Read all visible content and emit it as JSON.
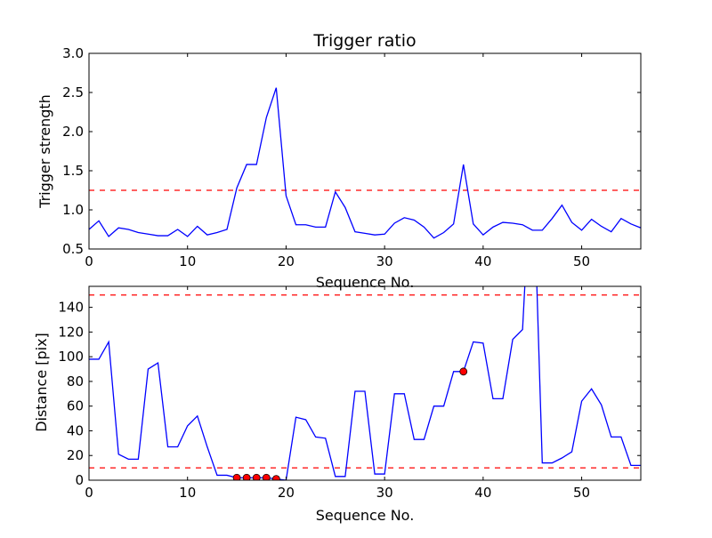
{
  "chart_data": [
    {
      "type": "line",
      "title": "Trigger ratio",
      "xlabel": "Sequence No.",
      "ylabel": "Trigger strength",
      "xlim": [
        0,
        56
      ],
      "ylim": [
        0.5,
        3.0
      ],
      "xticks": [
        "0",
        "10",
        "20",
        "30",
        "40",
        "50"
      ],
      "yticks": [
        "0.5",
        "1.0",
        "1.5",
        "2.0",
        "2.5",
        "3.0"
      ],
      "grid": false,
      "legend": "none",
      "series": [
        {
          "color": "#0000ff",
          "x": [
            0,
            1,
            2,
            3,
            4,
            5,
            6,
            7,
            8,
            9,
            10,
            11,
            12,
            13,
            14,
            15,
            16,
            17,
            18,
            19,
            20,
            21,
            22,
            23,
            24,
            25,
            26,
            27,
            28,
            29,
            30,
            31,
            32,
            33,
            34,
            35,
            36,
            37,
            38,
            39,
            40,
            41,
            42,
            43,
            44,
            45,
            46,
            47,
            48,
            49,
            50,
            51,
            52,
            53,
            54,
            55,
            56
          ],
          "y": [
            0.75,
            0.86,
            0.66,
            0.77,
            0.75,
            0.71,
            0.69,
            0.67,
            0.67,
            0.75,
            0.66,
            0.79,
            0.68,
            0.71,
            0.75,
            1.28,
            1.58,
            1.58,
            2.18,
            2.56,
            1.18,
            0.81,
            0.81,
            0.78,
            0.78,
            1.23,
            1.03,
            0.72,
            0.7,
            0.68,
            0.69,
            0.83,
            0.9,
            0.87,
            0.78,
            0.64,
            0.71,
            0.82,
            1.58,
            0.82,
            0.68,
            0.78,
            0.84,
            0.83,
            0.81,
            0.74,
            0.74,
            0.89,
            1.06,
            0.84,
            0.74,
            0.88,
            0.79,
            0.72,
            0.89,
            0.82,
            0.77
          ]
        }
      ],
      "hlines": [
        {
          "y": 1.25,
          "color": "#ff0000",
          "style": "dashed"
        }
      ]
    },
    {
      "type": "line",
      "title": "",
      "xlabel": "Sequence No.",
      "ylabel": "Distance [pix]",
      "xlim": [
        0,
        56
      ],
      "ylim": [
        0,
        157
      ],
      "xticks": [
        "0",
        "10",
        "20",
        "30",
        "40",
        "50"
      ],
      "yticks": [
        "0",
        "20",
        "40",
        "60",
        "80",
        "100",
        "120",
        "140"
      ],
      "grid": false,
      "legend": "none",
      "series": [
        {
          "color": "#0000ff",
          "x": [
            0,
            1,
            2,
            3,
            4,
            5,
            6,
            7,
            8,
            9,
            10,
            11,
            12,
            13,
            14,
            15,
            16,
            17,
            18,
            19,
            20,
            21,
            22,
            23,
            24,
            25,
            26,
            27,
            28,
            29,
            30,
            31,
            32,
            33,
            34,
            35,
            36,
            37,
            38,
            39,
            40,
            41,
            42,
            43,
            44,
            45,
            46,
            47,
            48,
            49,
            50,
            51,
            52,
            53,
            54,
            55,
            56
          ],
          "y": [
            98,
            98,
            112,
            21,
            17,
            17,
            90,
            95,
            27,
            27,
            44,
            52,
            27,
            4,
            4,
            2,
            2,
            2,
            2,
            1,
            0,
            51,
            49,
            35,
            34,
            3,
            3,
            72,
            72,
            5,
            5,
            70,
            70,
            33,
            33,
            60,
            60,
            88,
            88,
            112,
            111,
            66,
            66,
            114,
            122,
            275,
            14,
            14,
            18,
            23,
            64,
            74,
            61,
            35,
            35,
            12,
            12
          ]
        },
        {
          "type": "scatter",
          "color": "#ff0000",
          "marker": "circle",
          "x": [
            15,
            16,
            17,
            18,
            19,
            38
          ],
          "y": [
            2,
            2,
            2,
            2,
            1,
            88
          ]
        }
      ],
      "hlines": [
        {
          "y": 150,
          "color": "#ff0000",
          "style": "dashed"
        },
        {
          "y": 10,
          "color": "#ff0000",
          "style": "dashed"
        }
      ]
    }
  ]
}
